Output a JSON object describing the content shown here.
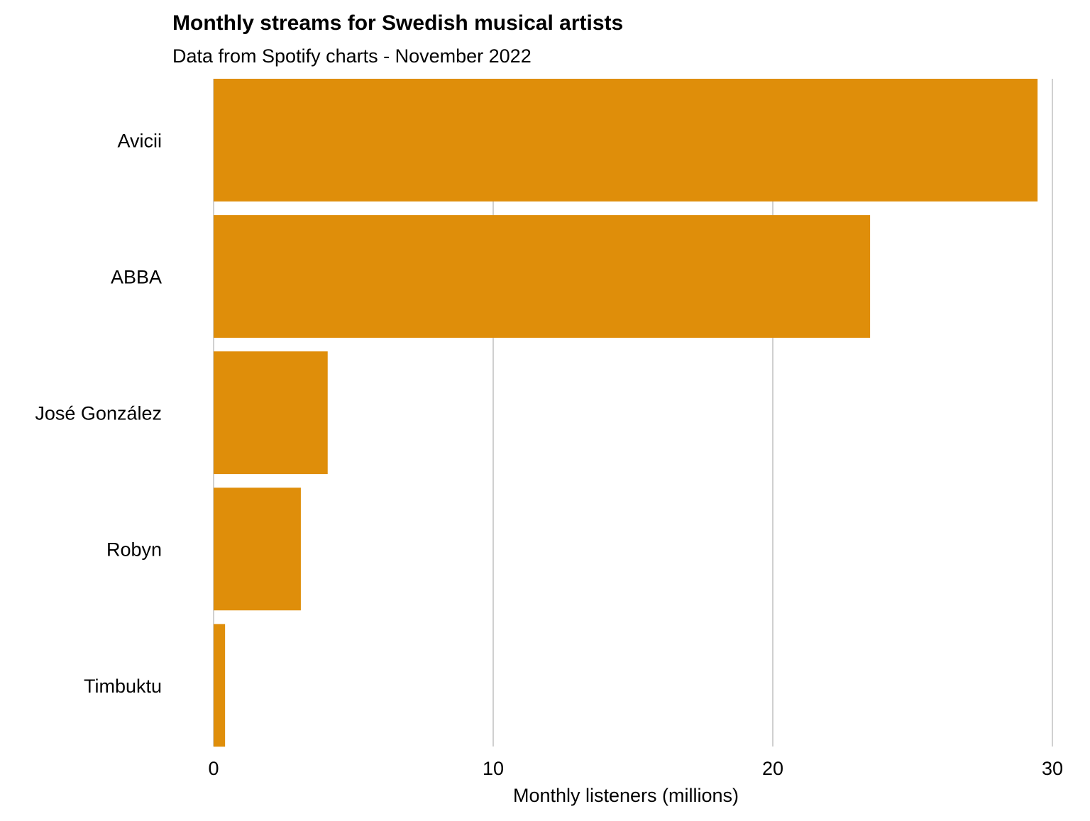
{
  "chart_data": {
    "type": "bar",
    "orientation": "horizontal",
    "title": "Monthly streams for Swedish musical artists",
    "subtitle": "Data from Spotify charts - November 2022",
    "xlabel": "Monthly listeners (millions)",
    "ylabel": "",
    "categories": [
      "Avicii",
      "ABBA",
      "José González",
      "Robyn",
      "Timbuktu"
    ],
    "values": [
      29.47,
      23.48,
      4.08,
      3.12,
      0.41
    ],
    "xlim": [
      0,
      30
    ],
    "xticks": [
      0,
      10,
      20,
      30
    ],
    "xtick_labels": [
      "0",
      "10",
      "20",
      "30"
    ],
    "grid": "vertical major gridlines",
    "legend": "none",
    "colors": {
      "bar": "#DF8E0A",
      "grid": "#D0D0D0",
      "text": "#000000"
    }
  }
}
